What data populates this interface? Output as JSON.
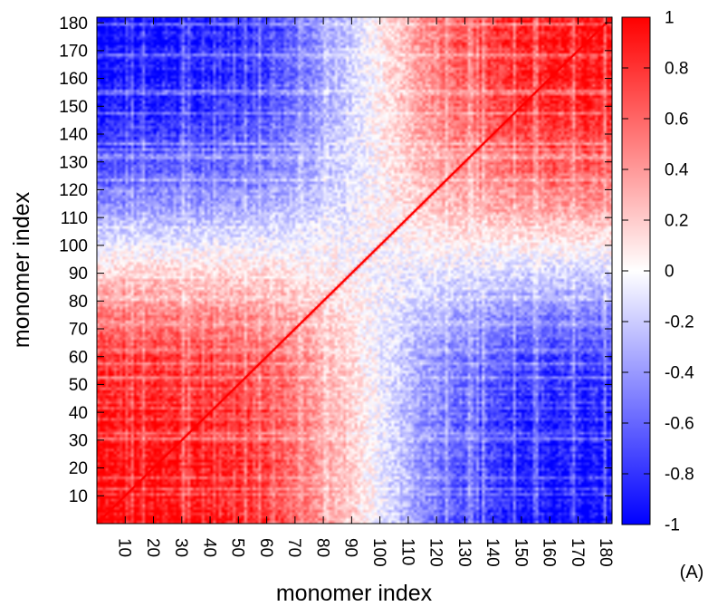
{
  "chart_data": {
    "type": "heatmap",
    "title": "",
    "xlabel": "monomer index",
    "ylabel": "monomer index",
    "panel_label": "(A)",
    "n": 182,
    "xlim": [
      0,
      182
    ],
    "ylim": [
      0,
      182
    ],
    "x_ticks": [
      10,
      20,
      30,
      40,
      50,
      60,
      70,
      80,
      90,
      100,
      110,
      120,
      130,
      140,
      150,
      160,
      170,
      180
    ],
    "y_ticks": [
      10,
      20,
      30,
      40,
      50,
      60,
      70,
      80,
      90,
      100,
      110,
      120,
      130,
      140,
      150,
      160,
      170,
      180
    ],
    "colorbar": {
      "range": [
        -1,
        1
      ],
      "ticks": [
        1,
        0.8,
        0.6,
        0.4,
        0.2,
        0,
        -0.2,
        -0.4,
        -0.6,
        -0.8,
        -1
      ],
      "tick_labels": [
        "1",
        "0.8",
        "0.6",
        "0.4",
        "0.2",
        "0",
        "-0.2",
        "-0.4",
        "-0.6",
        "-0.8",
        "-1"
      ],
      "colors": {
        "low": "#0000ff",
        "mid": "#ffffff",
        "high": "#ff0000"
      }
    },
    "diagonal_value": 1,
    "block_structure": [
      {
        "region": "i,j in 1-82",
        "approx_correlation": 0.7
      },
      {
        "region": "i,j in 110-182",
        "approx_correlation": 0.55
      },
      {
        "region": "i in 1-82, j in 140-182",
        "approx_correlation": -0.75
      },
      {
        "region": "i in 82-110",
        "approx_correlation": 0.0
      }
    ]
  }
}
